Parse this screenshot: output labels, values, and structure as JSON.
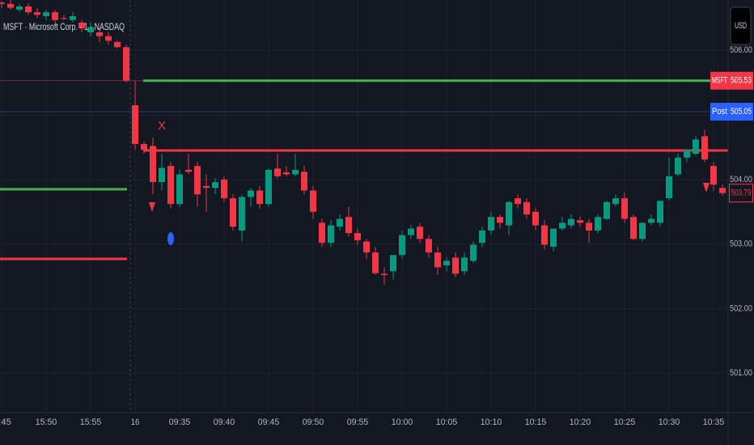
{
  "chart_data": {
    "type": "candlestick",
    "title": "MSFT · Microsoft Corp. · 1 · NASDAQ",
    "currency_button": "USD",
    "categories": [
      ":45",
      null,
      null,
      null,
      null,
      "15:50",
      null,
      null,
      null,
      null,
      "15:55",
      null,
      null,
      null,
      null,
      "16",
      null,
      null,
      null,
      null,
      "09:35",
      null,
      null,
      null,
      null,
      "09:40",
      null,
      null,
      null,
      null,
      "09:45",
      null,
      null,
      null,
      null,
      "09:50",
      null,
      null,
      null,
      null,
      "09:55",
      null,
      null,
      null,
      null,
      "10:00",
      null,
      null,
      null,
      null,
      "10:05",
      null,
      null,
      null,
      null,
      "10:10",
      null,
      null,
      null,
      null,
      "10:15",
      null,
      null,
      null,
      null,
      "10:20",
      null,
      null,
      null,
      null,
      "10:25",
      null,
      null,
      null,
      null,
      "10:30",
      null,
      null,
      null,
      null,
      "10:35",
      null
    ],
    "open": [
      506.74,
      506.72,
      506.63,
      506.68,
      506.59,
      506.53,
      506.59,
      506.5,
      506.47,
      506.43,
      506.28,
      506.28,
      506.22,
      506.13,
      506.05,
      505.15,
      504.55,
      504.52,
      503.96,
      504.21,
      503.62,
      504.15,
      504.21,
      503.9,
      503.87,
      504.0,
      503.71,
      503.21,
      503.73,
      503.83,
      503.62,
      504.17,
      504.11,
      504.08,
      504.12,
      503.83,
      503.33,
      503.02,
      503.27,
      503.42,
      503.17,
      503.04,
      502.87,
      502.54,
      502.58,
      502.83,
      503.14,
      503.27,
      503.08,
      502.87,
      502.67,
      502.79,
      502.58,
      502.74,
      503.02,
      503.21,
      503.42,
      503.29,
      503.71,
      503.65,
      503.5,
      503.29,
      502.96,
      503.24,
      503.29,
      503.37,
      503.33,
      503.21,
      503.39,
      503.62,
      503.71,
      503.42,
      503.08,
      503.33,
      503.33,
      503.71,
      504.08,
      504.34,
      504.4,
      504.67,
      504.21,
      503.87
    ],
    "high": [
      506.76,
      506.78,
      506.72,
      506.73,
      506.66,
      506.63,
      506.63,
      506.55,
      506.59,
      506.47,
      506.43,
      506.34,
      506.28,
      506.15,
      506.09,
      505.53,
      504.59,
      504.65,
      504.4,
      504.27,
      504.15,
      504.4,
      504.27,
      504.08,
      504.02,
      504.05,
      503.77,
      503.77,
      503.87,
      503.9,
      504.17,
      504.4,
      504.21,
      504.4,
      504.21,
      503.9,
      503.39,
      503.37,
      503.46,
      503.58,
      503.24,
      503.08,
      502.96,
      502.64,
      502.83,
      503.21,
      503.29,
      503.33,
      503.14,
      502.96,
      502.79,
      502.87,
      502.87,
      503.04,
      503.27,
      503.5,
      503.46,
      503.67,
      503.77,
      503.71,
      503.55,
      503.37,
      503.24,
      503.42,
      503.46,
      503.42,
      503.39,
      503.46,
      503.67,
      503.77,
      503.8,
      503.46,
      503.33,
      503.46,
      503.67,
      504.34,
      504.4,
      504.46,
      504.67,
      504.77,
      504.27,
      503.92
    ],
    "low": [
      506.66,
      506.63,
      506.59,
      506.55,
      506.5,
      506.47,
      506.43,
      506.47,
      506.43,
      506.28,
      506.22,
      506.13,
      506.09,
      506.03,
      505.5,
      504.46,
      504.4,
      503.77,
      503.83,
      503.55,
      503.58,
      504.08,
      503.58,
      503.5,
      503.77,
      503.65,
      503.21,
      503.04,
      503.58,
      503.55,
      503.58,
      504.02,
      504.05,
      504.05,
      503.77,
      503.39,
      502.96,
      502.96,
      503.21,
      503.12,
      502.99,
      502.77,
      502.52,
      502.37,
      502.45,
      502.77,
      503.08,
      503.02,
      502.79,
      502.52,
      502.58,
      502.49,
      502.52,
      502.71,
      502.96,
      503.14,
      503.24,
      503.14,
      503.55,
      503.39,
      503.21,
      502.92,
      502.89,
      503.21,
      503.24,
      503.27,
      503.02,
      503.17,
      503.37,
      503.58,
      503.33,
      503.06,
      503.04,
      503.29,
      503.27,
      503.67,
      504.05,
      504.27,
      504.37,
      504.27,
      503.83,
      503.75
    ],
    "close": [
      506.72,
      506.66,
      506.68,
      506.59,
      506.55,
      506.59,
      506.47,
      506.49,
      506.53,
      506.34,
      506.36,
      506.22,
      506.15,
      506.05,
      505.53,
      504.55,
      504.46,
      503.96,
      504.18,
      503.62,
      504.08,
      504.12,
      503.77,
      503.87,
      503.96,
      503.71,
      503.27,
      503.73,
      503.83,
      503.62,
      504.15,
      504.05,
      504.08,
      504.15,
      503.83,
      503.5,
      503.02,
      503.29,
      503.39,
      503.17,
      503.06,
      502.87,
      502.55,
      502.52,
      502.83,
      503.14,
      503.24,
      503.08,
      502.87,
      502.64,
      502.74,
      502.54,
      502.79,
      502.99,
      503.21,
      503.42,
      503.33,
      503.65,
      503.62,
      503.46,
      503.29,
      502.99,
      503.24,
      503.33,
      503.39,
      503.33,
      503.21,
      503.42,
      503.65,
      503.71,
      503.39,
      503.08,
      503.33,
      503.39,
      503.67,
      504.05,
      504.34,
      504.46,
      504.62,
      504.31,
      503.92,
      503.79
    ],
    "up_color": "#089981",
    "down_color": "#f23645",
    "ylim": [
      500.39,
      506.78
    ],
    "yticks": [
      {
        "value": 501,
        "label": "501.00"
      },
      {
        "value": 502,
        "label": "502.00"
      },
      {
        "value": 503,
        "label": "503.00"
      },
      {
        "value": 504,
        "label": "504.00"
      },
      {
        "value": 505,
        "label": "505.00"
      },
      {
        "value": 506,
        "label": "506.00"
      }
    ],
    "grid": true,
    "levels": [
      {
        "value": 505.53,
        "color": "#7a2a33",
        "span": "all",
        "width": 1
      },
      {
        "value": 505.53,
        "color": "#4caf50",
        "span": "session",
        "width": 3
      },
      {
        "value": 505.05,
        "color": "#2a3a7a",
        "span": "all",
        "width": 1
      },
      {
        "value": 504.45,
        "color": "#f23645",
        "span": "session",
        "width": 3
      },
      {
        "value": 503.85,
        "color": "#4caf50",
        "span": "previous",
        "width": 3
      },
      {
        "value": 502.77,
        "color": "#f23645",
        "span": "previous",
        "width": 3
      }
    ],
    "price_labels": [
      {
        "name": "MSFT",
        "value": 505.53,
        "label": "505.53",
        "color": "#f23645"
      },
      {
        "name": "Post",
        "value": 505.05,
        "label": "505.05",
        "color": "#2962ff"
      }
    ],
    "last_price": {
      "value": 503.79,
      "label": "503.79",
      "color": "#f23645"
    },
    "annotations": [
      "X"
    ]
  }
}
